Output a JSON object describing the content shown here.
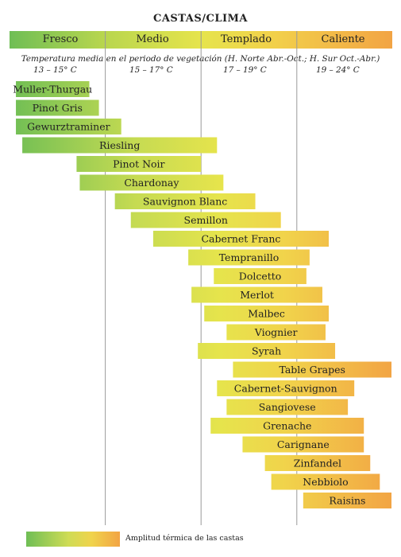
{
  "chart_data": {
    "type": "bar",
    "title": "CASTAS/CLIMA",
    "subtitle": "Temperatura media en el periodo de vegetación (H. Norte Abr.-Oct.; H. Sur Oct.-Abr.)",
    "zones": [
      "Fresco",
      "Medio",
      "Templado",
      "Caliente"
    ],
    "ranges": [
      "13 – 15° C",
      "15 – 17° C",
      "17 – 19° C",
      "19 – 24° C"
    ],
    "xlim": [
      12.5,
      24.5
    ],
    "grid": true,
    "legend": "Amplitud térmica de las castas",
    "legend_placement": "bottom-left",
    "colors": {
      "cool": "#6fbe55",
      "mid": "#e6e44c",
      "warm": "#f2a444"
    },
    "varieties": [
      {
        "name": "Muller-Thurgau",
        "start": 12.7,
        "end": 15.0
      },
      {
        "name": "Pinot Gris",
        "start": 12.7,
        "end": 15.3
      },
      {
        "name": "Gewurztraminer",
        "start": 12.7,
        "end": 16.0
      },
      {
        "name": "Riesling",
        "start": 12.9,
        "end": 19.0
      },
      {
        "name": "Pinot Noir",
        "start": 14.6,
        "end": 18.5
      },
      {
        "name": "Chardonay",
        "start": 14.7,
        "end": 19.2
      },
      {
        "name": "Sauvignon Blanc",
        "start": 15.8,
        "end": 20.2
      },
      {
        "name": "Semillon",
        "start": 16.3,
        "end": 21.0
      },
      {
        "name": "Cabernet Franc",
        "start": 17.0,
        "end": 22.5
      },
      {
        "name": "Tempranillo",
        "start": 18.1,
        "end": 21.9
      },
      {
        "name": "Dolcetto",
        "start": 18.9,
        "end": 21.8
      },
      {
        "name": "Merlot",
        "start": 18.2,
        "end": 22.3
      },
      {
        "name": "Malbec",
        "start": 18.6,
        "end": 22.5
      },
      {
        "name": "Viognier",
        "start": 19.3,
        "end": 22.4
      },
      {
        "name": "Syrah",
        "start": 18.4,
        "end": 22.7
      },
      {
        "name": "Table Grapes",
        "start": 19.5,
        "end": 24.6
      },
      {
        "name": "Cabernet-Sauvignon",
        "start": 19.0,
        "end": 23.3
      },
      {
        "name": "Sangiovese",
        "start": 19.3,
        "end": 23.1
      },
      {
        "name": "Grenache",
        "start": 18.8,
        "end": 23.6
      },
      {
        "name": "Carignane",
        "start": 19.8,
        "end": 23.6
      },
      {
        "name": "Zinfandel",
        "start": 20.5,
        "end": 23.8
      },
      {
        "name": "Nebbiolo",
        "start": 20.7,
        "end": 24.1
      },
      {
        "name": "Raisins",
        "start": 21.7,
        "end": 24.6
      }
    ]
  }
}
